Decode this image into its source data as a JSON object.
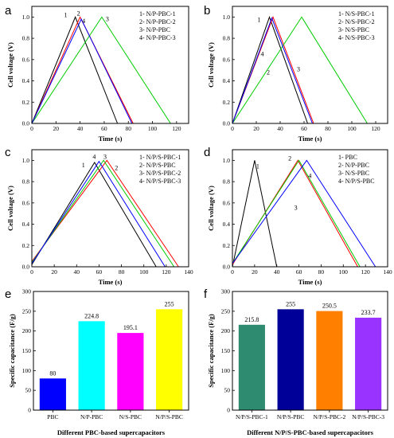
{
  "chart_data": [
    {
      "panel": "a",
      "type": "line",
      "xlabel": "Time (s)",
      "ylabel": "Cell voltage (V)",
      "xlim": [
        0,
        130
      ],
      "ylim": [
        0,
        1.1
      ],
      "xticks": [
        "0",
        "20",
        "40",
        "60",
        "80",
        "100",
        "120"
      ],
      "yticks": [
        "0.0",
        "0.2",
        "0.4",
        "0.6",
        "0.8",
        "1.0"
      ],
      "legend_position": "top-right",
      "legend": [
        "1- N/P-PBC-1",
        "2- N/P-PBC-2",
        "3- N/P-PBC",
        "4- N/P-PBC-3"
      ],
      "series": [
        {
          "label": "1",
          "color": "#000000",
          "x": [
            0,
            36,
            71
          ],
          "y": [
            0.0,
            1.0,
            0.0
          ]
        },
        {
          "label": "2",
          "color": "#ff0000",
          "x": [
            0,
            40,
            84
          ],
          "y": [
            0.0,
            1.0,
            0.0
          ]
        },
        {
          "label": "3",
          "color": "#00cc00",
          "x": [
            0,
            58,
            115
          ],
          "y": [
            0.0,
            1.0,
            0.0
          ]
        },
        {
          "label": "4",
          "color": "#0000ff",
          "x": [
            0,
            41,
            83
          ],
          "y": [
            0.0,
            0.98,
            0.0
          ]
        }
      ]
    },
    {
      "panel": "b",
      "type": "line",
      "xlabel": "Time (s)",
      "ylabel": "Cell voltage (V)",
      "xlim": [
        0,
        130
      ],
      "ylim": [
        0,
        1.1
      ],
      "xticks": [
        "0",
        "20",
        "40",
        "60",
        "80",
        "100",
        "120"
      ],
      "yticks": [
        "0.0",
        "0.2",
        "0.4",
        "0.6",
        "0.8",
        "1.0"
      ],
      "legend_position": "top-right",
      "legend": [
        "1- N/S-PBC-1",
        "2- N/S-PBC-2",
        "3- N/S-PBC",
        "4- N/S-PBC-3"
      ],
      "series": [
        {
          "label": "1",
          "color": "#000000",
          "x": [
            0,
            31,
            63
          ],
          "y": [
            0.0,
            1.0,
            0.0
          ]
        },
        {
          "label": "2",
          "color": "#ff0000",
          "x": [
            0,
            34,
            68
          ],
          "y": [
            0.0,
            1.0,
            0.0
          ]
        },
        {
          "label": "3",
          "color": "#00cc00",
          "x": [
            0,
            58,
            113
          ],
          "y": [
            0.0,
            1.0,
            0.0
          ]
        },
        {
          "label": "4",
          "color": "#0000ff",
          "x": [
            0,
            33,
            67
          ],
          "y": [
            0.0,
            0.99,
            0.0
          ]
        }
      ]
    },
    {
      "panel": "c",
      "type": "line",
      "xlabel": "Time (s)",
      "ylabel": "Cell voltage (V)",
      "xlim": [
        0,
        140
      ],
      "ylim": [
        0,
        1.1
      ],
      "xticks": [
        "0",
        "20",
        "40",
        "60",
        "80",
        "100",
        "120",
        "140"
      ],
      "yticks": [
        "0.0",
        "0.2",
        "0.4",
        "0.6",
        "0.8",
        "1.0"
      ],
      "legend_position": "top-right",
      "legend": [
        "1- N/P/S-PBC-1",
        "2- N/P/S-PBC",
        "3- N/P/S-PBC-2",
        "4- N/P/S-PBC-3"
      ],
      "series": [
        {
          "label": "1",
          "color": "#000000",
          "x": [
            0,
            56,
            111
          ],
          "y": [
            0.02,
            0.98,
            0.0
          ]
        },
        {
          "label": "2",
          "color": "#ff0000",
          "x": [
            0,
            67,
            131
          ],
          "y": [
            0.05,
            1.0,
            0.0
          ]
        },
        {
          "label": "3",
          "color": "#00cc00",
          "x": [
            0,
            64,
            127
          ],
          "y": [
            0.04,
            1.0,
            0.0
          ]
        },
        {
          "label": "4",
          "color": "#0000ff",
          "x": [
            0,
            60,
            119
          ],
          "y": [
            0.03,
            0.99,
            0.0
          ]
        }
      ]
    },
    {
      "panel": "d",
      "type": "line",
      "xlabel": "Time (s)",
      "ylabel": "Cell voltage (V)",
      "xlim": [
        0,
        140
      ],
      "ylim": [
        0,
        1.1
      ],
      "xticks": [
        "0",
        "20",
        "40",
        "60",
        "80",
        "100",
        "120",
        "140"
      ],
      "yticks": [
        "0.0",
        "0.2",
        "0.4",
        "0.6",
        "0.8",
        "1.0"
      ],
      "legend_position": "top-right",
      "legend": [
        "1- PBC",
        "2- N/P-PBC",
        "3- N/S-PBC",
        "4- N/P/S-PBC"
      ],
      "series": [
        {
          "label": "1",
          "color": "#000000",
          "x": [
            0,
            20,
            40
          ],
          "y": [
            0.0,
            1.0,
            0.0
          ]
        },
        {
          "label": "2",
          "color": "#ff0000",
          "x": [
            0,
            59,
            113
          ],
          "y": [
            0.02,
            1.0,
            0.0
          ]
        },
        {
          "label": "3",
          "color": "#00cc00",
          "x": [
            0,
            60,
            115
          ],
          "y": [
            0.03,
            1.0,
            0.0
          ]
        },
        {
          "label": "4",
          "color": "#0000ff",
          "x": [
            0,
            67,
            129
          ],
          "y": [
            0.03,
            1.0,
            0.0
          ]
        }
      ]
    },
    {
      "panel": "e",
      "type": "bar",
      "xlabel": "Different PBC-based supercapacitors",
      "ylabel": "Specific capacitance (F/g)",
      "ylim": [
        0,
        300
      ],
      "yticks": [
        "0",
        "50",
        "100",
        "150",
        "200",
        "250",
        "300"
      ],
      "categories": [
        "PBC",
        "N/P-PBC",
        "N/S-PBC",
        "N/P/S-PBC"
      ],
      "values": [
        80,
        224.8,
        195.1,
        255
      ],
      "value_labels": [
        "80",
        "224.8",
        "195.1",
        "255"
      ],
      "colors": [
        "#0000ff",
        "#00ffff",
        "#ff00ff",
        "#ffff00"
      ]
    },
    {
      "panel": "f",
      "type": "bar",
      "xlabel": "Different N/P/S-PBC-based supercapacitors",
      "ylabel": "Specific capacitance (F/g)",
      "ylim": [
        0,
        300
      ],
      "yticks": [
        "0",
        "50",
        "100",
        "150",
        "200",
        "250",
        "300"
      ],
      "categories": [
        "N/P/S-PBC-1",
        "N/P/S-PBC",
        "N/P/S-PBC-2",
        "N/P/S-PBC-3"
      ],
      "values": [
        215.8,
        255,
        250.5,
        233.7
      ],
      "value_labels": [
        "215.8",
        "255",
        "250.5",
        "233.7"
      ],
      "colors": [
        "#2e8b70",
        "#000099",
        "#ff8000",
        "#9933ff"
      ]
    }
  ]
}
